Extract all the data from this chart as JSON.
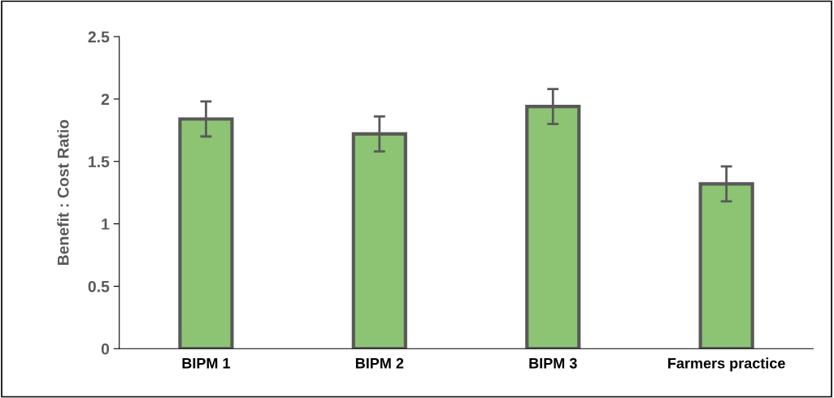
{
  "chart_data": {
    "type": "bar",
    "ylabel": "Benefit : Cost Ratio",
    "categories": [
      "BIPM 1",
      "BIPM 2",
      "BIPM 3",
      "Farmers practice"
    ],
    "values": [
      1.84,
      1.72,
      1.94,
      1.32
    ],
    "errors": [
      0.14,
      0.14,
      0.14,
      0.14
    ],
    "color": "#8cc474",
    "ylim": [
      0,
      2.5
    ],
    "yticks": [
      0,
      0.5,
      1,
      1.5,
      2,
      2.5
    ],
    "grid": false
  }
}
